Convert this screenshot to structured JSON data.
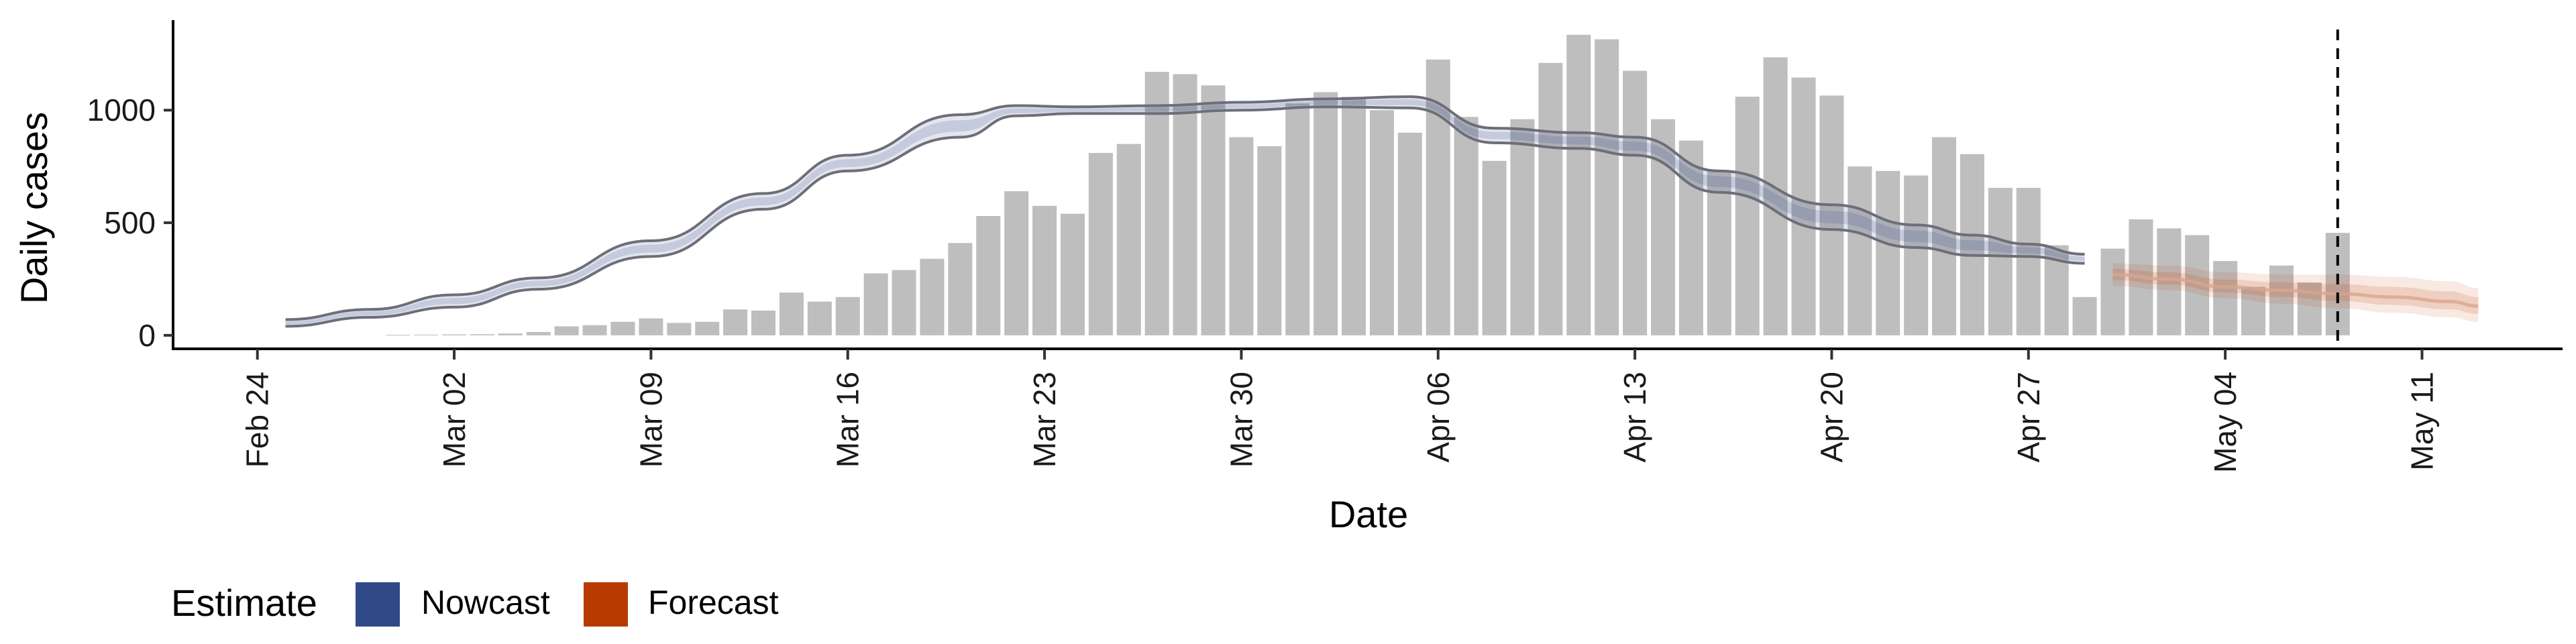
{
  "chart_data": {
    "type": "bar",
    "xlabel": "Date",
    "ylabel": "Daily cases",
    "x_tick_labels": [
      "Feb 24",
      "Mar 02",
      "Mar 09",
      "Mar 16",
      "Mar 23",
      "Mar 30",
      "Apr 06",
      "Apr 13",
      "Apr 20",
      "Apr 27",
      "May 04",
      "May 11"
    ],
    "x_tick_dates": [
      "2020-02-24",
      "2020-03-02",
      "2020-03-09",
      "2020-03-16",
      "2020-03-23",
      "2020-03-30",
      "2020-04-06",
      "2020-04-13",
      "2020-04-20",
      "2020-04-27",
      "2020-05-04",
      "2020-05-11"
    ],
    "y_ticks": [
      0,
      500,
      1000
    ],
    "xlim": [
      "2020-02-21",
      "2020-05-16"
    ],
    "ylim": [
      -60,
      1400
    ],
    "grid": false,
    "bar_color": "#bebebe",
    "series": [
      {
        "kind": "bars",
        "x_start": "2020-02-29",
        "values": [
          2,
          3,
          4,
          5,
          8,
          15,
          40,
          45,
          60,
          75,
          55,
          60,
          115,
          110,
          190,
          150,
          170,
          275,
          290,
          340,
          410,
          530,
          640,
          575,
          540,
          810,
          850,
          1170,
          1160,
          1110,
          880,
          840,
          1030,
          1080,
          1060,
          1000,
          900,
          1225,
          970,
          775,
          960,
          1210,
          1335,
          1315,
          1175,
          960,
          865,
          730,
          1060,
          1235,
          1145,
          1065,
          750,
          730,
          710,
          880,
          805,
          655,
          655,
          400,
          170,
          385,
          515,
          475,
          445,
          330,
          215,
          310,
          235,
          455
        ]
      },
      {
        "kind": "nowcast",
        "name": "Nowcast",
        "color": "#3c4f8a",
        "x": [
          "2020-02-25",
          "2020-02-28",
          "2020-03-02",
          "2020-03-05",
          "2020-03-09",
          "2020-03-13",
          "2020-03-16",
          "2020-03-20",
          "2020-03-22",
          "2020-03-24",
          "2020-03-27",
          "2020-03-30",
          "2020-04-02",
          "2020-04-05",
          "2020-04-08",
          "2020-04-11",
          "2020-04-13",
          "2020-04-16",
          "2020-04-20",
          "2020-04-23",
          "2020-04-25",
          "2020-04-27",
          "2020-04-29"
        ],
        "upper": [
          70,
          115,
          180,
          255,
          420,
          630,
          800,
          980,
          1020,
          1015,
          1020,
          1035,
          1050,
          1060,
          920,
          900,
          880,
          730,
          580,
          490,
          445,
          405,
          360
        ],
        "lower": [
          40,
          80,
          125,
          205,
          350,
          560,
          730,
          880,
          975,
          985,
          985,
          1000,
          1015,
          1010,
          855,
          830,
          800,
          635,
          470,
          390,
          355,
          350,
          320
        ]
      },
      {
        "kind": "forecast",
        "name": "Forecast",
        "color": "#c24a12",
        "x": [
          "2020-04-30",
          "2020-05-02",
          "2020-05-04",
          "2020-05-06",
          "2020-05-08",
          "2020-05-10",
          "2020-05-12",
          "2020-05-13"
        ],
        "mid": [
          270,
          250,
          215,
          200,
          185,
          170,
          150,
          130
        ],
        "upper": [
          320,
          310,
          280,
          270,
          270,
          260,
          240,
          210
        ],
        "lower": [
          220,
          200,
          165,
          140,
          120,
          100,
          80,
          60
        ]
      }
    ],
    "vline_date": "2020-05-08",
    "legend": {
      "title": "Estimate",
      "position": "bottom-left",
      "items": [
        {
          "label": "Nowcast",
          "color": "#2f4a86"
        },
        {
          "label": "Forecast",
          "color": "#b83a00"
        }
      ]
    }
  }
}
